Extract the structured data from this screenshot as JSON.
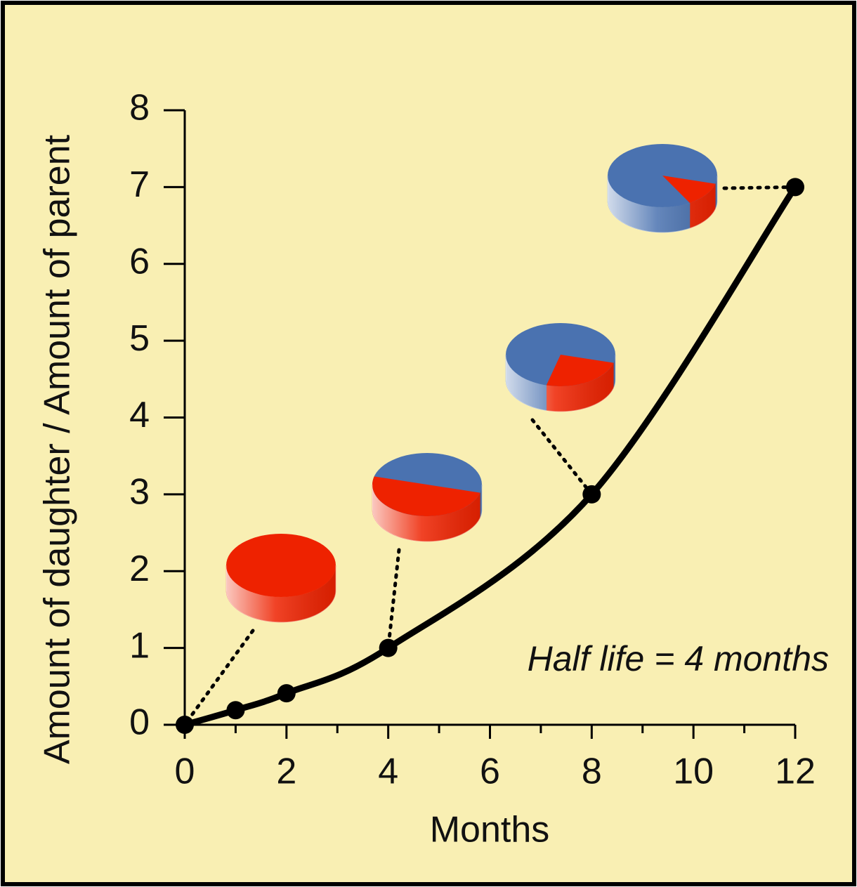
{
  "chart_data": {
    "type": "line",
    "ylabel": "Amount of daughter / Amount of parent",
    "xlabel": "Months",
    "annotation": "Half life = 4 months",
    "x": [
      0,
      1,
      2,
      4,
      8,
      12
    ],
    "series": [
      {
        "color": "#000000",
        "values": [
          0,
          0.19,
          0.41,
          1,
          3,
          7
        ]
      }
    ],
    "xlim": [
      0,
      12
    ],
    "xticks": [
      0,
      2,
      4,
      6,
      8,
      10,
      12
    ],
    "ylim": [
      0,
      8
    ],
    "yticks": [
      0,
      1,
      2,
      3,
      4,
      5,
      6,
      7,
      8
    ],
    "grid": false
  }
}
